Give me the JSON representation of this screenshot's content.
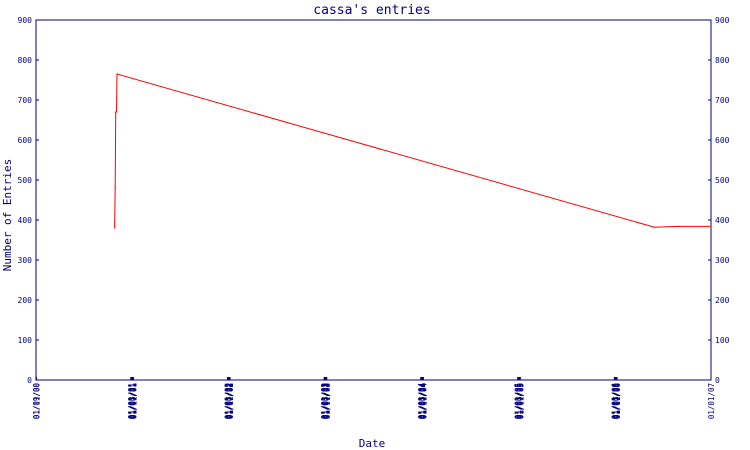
{
  "chart_data": {
    "type": "line",
    "title": "cassa's entries",
    "xlabel": "Date",
    "ylabel": "Number of Entries",
    "ylim": [
      0,
      900
    ],
    "yticks": [
      0,
      100,
      200,
      300,
      400,
      500,
      600,
      700,
      800,
      900
    ],
    "y_axis_both_sides": true,
    "grid": false,
    "x_tick_labels": [
      "01/09/00",
      "01/11/00",
      "01/01/01",
      "01/03/01",
      "01/05/01",
      "01/07/01",
      "01/09/01",
      "01/11/01",
      "01/01/02",
      "01/03/02",
      "01/05/02",
      "01/07/02",
      "01/09/02",
      "01/11/02",
      "01/01/03",
      "01/03/03",
      "01/05/03",
      "01/07/03",
      "01/09/03",
      "01/11/03",
      "01/01/04",
      "01/03/04",
      "01/05/04",
      "01/07/04",
      "01/09/04",
      "01/11/04",
      "01/01/05",
      "01/03/05",
      "01/05/05",
      "01/07/05",
      "01/09/05",
      "01/11/05",
      "01/01/06",
      "01/03/06",
      "01/05/06",
      "01/07/06",
      "01/09/06",
      "01/11/06",
      "01/01/07"
    ],
    "series": [
      {
        "color": "#ff0000",
        "x": [
          "2000-11-01",
          "2000-11-03",
          "2000-11-05",
          "2000-11-08",
          "2000-11-10",
          "2006-06-01",
          "2006-09-01",
          "2006-12-31"
        ],
        "y": [
          380,
          480,
          670,
          670,
          765,
          382,
          384,
          384
        ]
      }
    ],
    "colors": {
      "axis": "#000080",
      "text": "#000080",
      "line": "#ff0000",
      "background": "#ffffff"
    }
  }
}
